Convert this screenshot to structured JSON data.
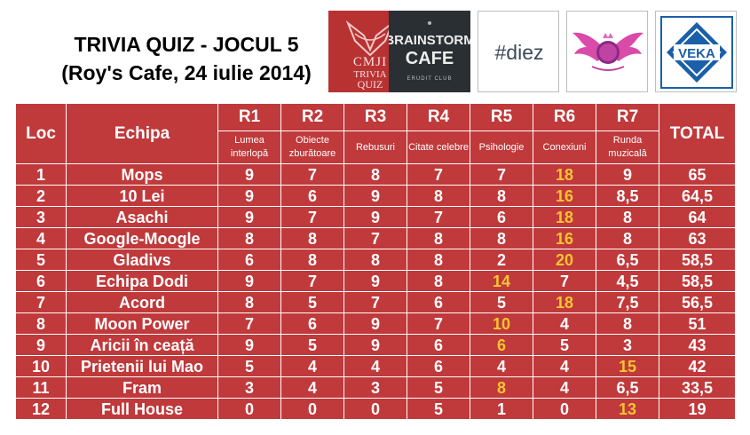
{
  "title": {
    "line1": "TRIVIA QUIZ - JOCUL 5",
    "line2": "(Roy's Cafe, 24 iulie 2014)"
  },
  "logos": {
    "cmji": [
      "CMJI",
      "TRIVIA",
      "QUIZ"
    ],
    "brainstorm": {
      "line1": "BRAINSTORM",
      "line2": "CAFE",
      "tag": "ERUDIT CLUB"
    },
    "diez": "#diez",
    "veka": "VEKA"
  },
  "colors": {
    "table_bg": "#c0393b",
    "text": "#ffffff",
    "highlight": "#f7c531"
  },
  "table": {
    "headers": {
      "loc": "Loc",
      "echipa": "Echipa",
      "total": "TOTAL",
      "rounds": [
        {
          "code": "R1",
          "name": "Lumea interlopă"
        },
        {
          "code": "R2",
          "name": "Obiecte zburătoare"
        },
        {
          "code": "R3",
          "name": "Rebusuri"
        },
        {
          "code": "R4",
          "name": "Citate celebre"
        },
        {
          "code": "R5",
          "name": "Psihologie"
        },
        {
          "code": "R6",
          "name": "Conexiuni"
        },
        {
          "code": "R7",
          "name": "Runda muzicală"
        }
      ]
    },
    "rows": [
      {
        "loc": "1",
        "team": "Mops",
        "scores": [
          "9",
          "7",
          "8",
          "7",
          "7",
          "18",
          "9"
        ],
        "total": "65",
        "highlight": [
          5
        ]
      },
      {
        "loc": "2",
        "team": "10 Lei",
        "scores": [
          "9",
          "6",
          "9",
          "8",
          "8",
          "16",
          "8,5"
        ],
        "total": "64,5",
        "highlight": [
          5
        ]
      },
      {
        "loc": "3",
        "team": "Asachi",
        "scores": [
          "9",
          "7",
          "9",
          "7",
          "6",
          "18",
          "8"
        ],
        "total": "64",
        "highlight": [
          5
        ]
      },
      {
        "loc": "4",
        "team": "Google-Moogle",
        "scores": [
          "8",
          "8",
          "7",
          "8",
          "8",
          "16",
          "8"
        ],
        "total": "63",
        "highlight": [
          5
        ]
      },
      {
        "loc": "5",
        "team": "Gladivs",
        "scores": [
          "6",
          "8",
          "8",
          "8",
          "2",
          "20",
          "6,5"
        ],
        "total": "58,5",
        "highlight": [
          5
        ]
      },
      {
        "loc": "6",
        "team": "Echipa Dodi",
        "scores": [
          "9",
          "7",
          "9",
          "8",
          "14",
          "7",
          "4,5"
        ],
        "total": "58,5",
        "highlight": [
          4
        ]
      },
      {
        "loc": "7",
        "team": "Acord",
        "scores": [
          "8",
          "5",
          "7",
          "6",
          "5",
          "18",
          "7,5"
        ],
        "total": "56,5",
        "highlight": [
          5
        ]
      },
      {
        "loc": "8",
        "team": "Moon Power",
        "scores": [
          "7",
          "6",
          "9",
          "7",
          "10",
          "4",
          "8"
        ],
        "total": "51",
        "highlight": [
          4
        ]
      },
      {
        "loc": "9",
        "team": "Aricii în ceață",
        "scores": [
          "9",
          "5",
          "9",
          "6",
          "6",
          "5",
          "3"
        ],
        "total": "43",
        "highlight": [
          4
        ]
      },
      {
        "loc": "10",
        "team": "Prietenii lui Mao",
        "scores": [
          "5",
          "4",
          "4",
          "6",
          "4",
          "4",
          "15"
        ],
        "total": "42",
        "highlight": [
          6
        ]
      },
      {
        "loc": "11",
        "team": "Fram",
        "scores": [
          "3",
          "4",
          "3",
          "5",
          "8",
          "4",
          "6,5"
        ],
        "total": "33,5",
        "highlight": [
          4
        ]
      },
      {
        "loc": "12",
        "team": "Full House",
        "scores": [
          "0",
          "0",
          "0",
          "5",
          "1",
          "0",
          "13"
        ],
        "total": "19",
        "highlight": [
          6
        ]
      }
    ]
  }
}
